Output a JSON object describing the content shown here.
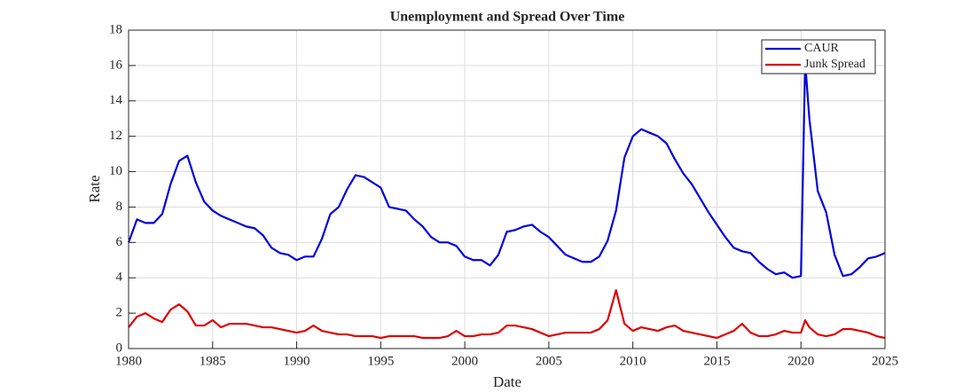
{
  "chart_data": {
    "type": "line",
    "title": "Unemployment and Spread Over Time",
    "xlabel": "Date",
    "ylabel": "Rate",
    "x": [
      1980,
      1980.5,
      1981,
      1981.5,
      1982,
      1982.5,
      1983,
      1983.5,
      1984,
      1984.5,
      1985,
      1985.5,
      1986,
      1986.5,
      1987,
      1987.5,
      1988,
      1988.5,
      1989,
      1989.5,
      1990,
      1990.5,
      1991,
      1991.5,
      1992,
      1992.5,
      1993,
      1993.5,
      1994,
      1994.5,
      1995,
      1995.5,
      1996,
      1996.5,
      1997,
      1997.5,
      1998,
      1998.5,
      1999,
      1999.5,
      2000,
      2000.5,
      2001,
      2001.5,
      2002,
      2002.5,
      2003,
      2003.5,
      2004,
      2004.5,
      2005,
      2005.5,
      2006,
      2006.5,
      2007,
      2007.5,
      2008,
      2008.5,
      2009,
      2009.5,
      2010,
      2010.5,
      2011,
      2011.5,
      2012,
      2012.5,
      2013,
      2013.5,
      2014,
      2014.5,
      2015,
      2015.5,
      2016,
      2016.5,
      2017,
      2017.5,
      2018,
      2018.5,
      2019,
      2019.5,
      2020,
      2020.25,
      2020.5,
      2021,
      2021.5,
      2022,
      2022.5,
      2023,
      2023.5,
      2024,
      2024.5,
      2025
    ],
    "series": [
      {
        "name": "CAUR",
        "color": "#0000dd",
        "values": [
          6.0,
          7.3,
          7.1,
          7.1,
          7.6,
          9.3,
          10.6,
          10.9,
          9.4,
          8.3,
          7.8,
          7.5,
          7.3,
          7.1,
          6.9,
          6.8,
          6.4,
          5.7,
          5.4,
          5.3,
          5.0,
          5.2,
          5.2,
          6.2,
          7.6,
          8.0,
          9.0,
          9.8,
          9.7,
          9.4,
          9.1,
          8.0,
          7.9,
          7.8,
          7.3,
          6.9,
          6.3,
          6.0,
          6.0,
          5.8,
          5.2,
          5.0,
          5.0,
          4.7,
          5.3,
          6.6,
          6.7,
          6.9,
          7.0,
          6.6,
          6.3,
          5.8,
          5.3,
          5.1,
          4.9,
          4.9,
          5.2,
          6.1,
          7.8,
          10.8,
          12.0,
          12.4,
          12.2,
          12.0,
          11.6,
          10.7,
          9.9,
          9.3,
          8.5,
          7.7,
          7.0,
          6.3,
          5.7,
          5.5,
          5.4,
          4.9,
          4.5,
          4.2,
          4.3,
          4.0,
          4.1,
          16.2,
          13.0,
          8.9,
          7.7,
          5.3,
          4.1,
          4.2,
          4.6,
          5.1,
          5.2,
          5.4
        ]
      },
      {
        "name": "Junk Spread",
        "color": "#dd0000",
        "values": [
          1.2,
          1.8,
          2.0,
          1.7,
          1.5,
          2.2,
          2.5,
          2.1,
          1.3,
          1.3,
          1.6,
          1.2,
          1.4,
          1.4,
          1.4,
          1.3,
          1.2,
          1.2,
          1.1,
          1.0,
          0.9,
          1.0,
          1.3,
          1.0,
          0.9,
          0.8,
          0.8,
          0.7,
          0.7,
          0.7,
          0.6,
          0.7,
          0.7,
          0.7,
          0.7,
          0.6,
          0.6,
          0.6,
          0.7,
          1.0,
          0.7,
          0.7,
          0.8,
          0.8,
          0.9,
          1.3,
          1.3,
          1.2,
          1.1,
          0.9,
          0.7,
          0.8,
          0.9,
          0.9,
          0.9,
          0.9,
          1.1,
          1.6,
          3.3,
          1.4,
          1.0,
          1.2,
          1.1,
          1.0,
          1.2,
          1.3,
          1.0,
          0.9,
          0.8,
          0.7,
          0.6,
          0.8,
          1.0,
          1.4,
          0.9,
          0.7,
          0.7,
          0.8,
          1.0,
          0.9,
          0.9,
          1.6,
          1.2,
          0.8,
          0.7,
          0.8,
          1.1,
          1.1,
          1.0,
          0.9,
          0.7,
          0.6
        ]
      }
    ],
    "xlim": [
      1980,
      2025
    ],
    "xticks": [
      1980,
      1985,
      1990,
      1995,
      2000,
      2005,
      2010,
      2015,
      2020,
      2025
    ],
    "ylim": [
      0,
      18
    ],
    "yticks": [
      0,
      2,
      4,
      6,
      8,
      10,
      12,
      14,
      16,
      18
    ],
    "grid": true,
    "legend": "northeast"
  }
}
